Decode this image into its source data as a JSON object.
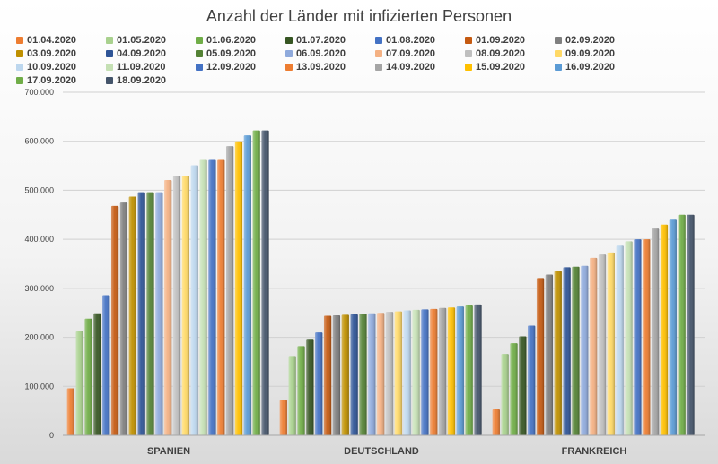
{
  "chart_data": {
    "type": "bar",
    "title": "Anzahl der Länder mit infizierten Personen",
    "categories": [
      "SPANIEN",
      "DEUTSCHLAND",
      "FRANKREICH"
    ],
    "ylim": [
      0,
      700000
    ],
    "yticks": [
      "0",
      "100.000",
      "200.000",
      "300.000",
      "400.000",
      "500.000",
      "600.000",
      "700.000"
    ],
    "ytick_values": [
      0,
      100000,
      200000,
      300000,
      400000,
      500000,
      600000,
      700000
    ],
    "grid": true,
    "legend_position": "top",
    "series": [
      {
        "name": "01.04.2020",
        "color": "#ED7D31",
        "values": [
          96000,
          72000,
          53000
        ]
      },
      {
        "name": "01.05.2020",
        "color": "#A9D18E",
        "values": [
          212000,
          162000,
          166000
        ]
      },
      {
        "name": "01.06.2020",
        "color": "#70AD47",
        "values": [
          238000,
          182000,
          188000
        ]
      },
      {
        "name": "01.07.2020",
        "color": "#375623",
        "values": [
          249000,
          195000,
          202000
        ]
      },
      {
        "name": "01.08.2020",
        "color": "#4472C4",
        "values": [
          286000,
          210000,
          224000
        ]
      },
      {
        "name": "01.09.2020",
        "color": "#C55A11",
        "values": [
          468000,
          244000,
          321000
        ]
      },
      {
        "name": "02.09.2020",
        "color": "#7F7F7F",
        "values": [
          475000,
          245000,
          328000
        ]
      },
      {
        "name": "03.09.2020",
        "color": "#BF9000",
        "values": [
          487000,
          246000,
          335000
        ]
      },
      {
        "name": "04.09.2020",
        "color": "#2F5597",
        "values": [
          496000,
          247000,
          343000
        ]
      },
      {
        "name": "05.09.2020",
        "color": "#548235",
        "values": [
          496000,
          248000,
          344000
        ]
      },
      {
        "name": "06.09.2020",
        "color": "#8FAADC",
        "values": [
          496000,
          249000,
          346000
        ]
      },
      {
        "name": "07.09.2020",
        "color": "#F4B183",
        "values": [
          521000,
          250000,
          362000
        ]
      },
      {
        "name": "08.09.2020",
        "color": "#BFBFBF",
        "values": [
          530000,
          252000,
          369000
        ]
      },
      {
        "name": "09.09.2020",
        "color": "#FFD966",
        "values": [
          530000,
          253000,
          373000
        ]
      },
      {
        "name": "10.09.2020",
        "color": "#BDD7EE",
        "values": [
          551000,
          255000,
          387000
        ]
      },
      {
        "name": "11.09.2020",
        "color": "#C5E0B4",
        "values": [
          562000,
          256000,
          396000
        ]
      },
      {
        "name": "12.09.2020",
        "color": "#4472C4",
        "values": [
          562000,
          257000,
          400000
        ]
      },
      {
        "name": "13.09.2020",
        "color": "#ED7D31",
        "values": [
          562000,
          258000,
          400000
        ]
      },
      {
        "name": "14.09.2020",
        "color": "#A5A5A5",
        "values": [
          590000,
          260000,
          422000
        ]
      },
      {
        "name": "15.09.2020",
        "color": "#FFC000",
        "values": [
          600000,
          261000,
          430000
        ]
      },
      {
        "name": "16.09.2020",
        "color": "#5B9BD5",
        "values": [
          612000,
          263000,
          440000
        ]
      },
      {
        "name": "17.09.2020",
        "color": "#70AD47",
        "values": [
          622000,
          265000,
          450000
        ]
      },
      {
        "name": "18.09.2020",
        "color": "#44546A",
        "values": [
          622000,
          267000,
          450000
        ]
      }
    ]
  }
}
